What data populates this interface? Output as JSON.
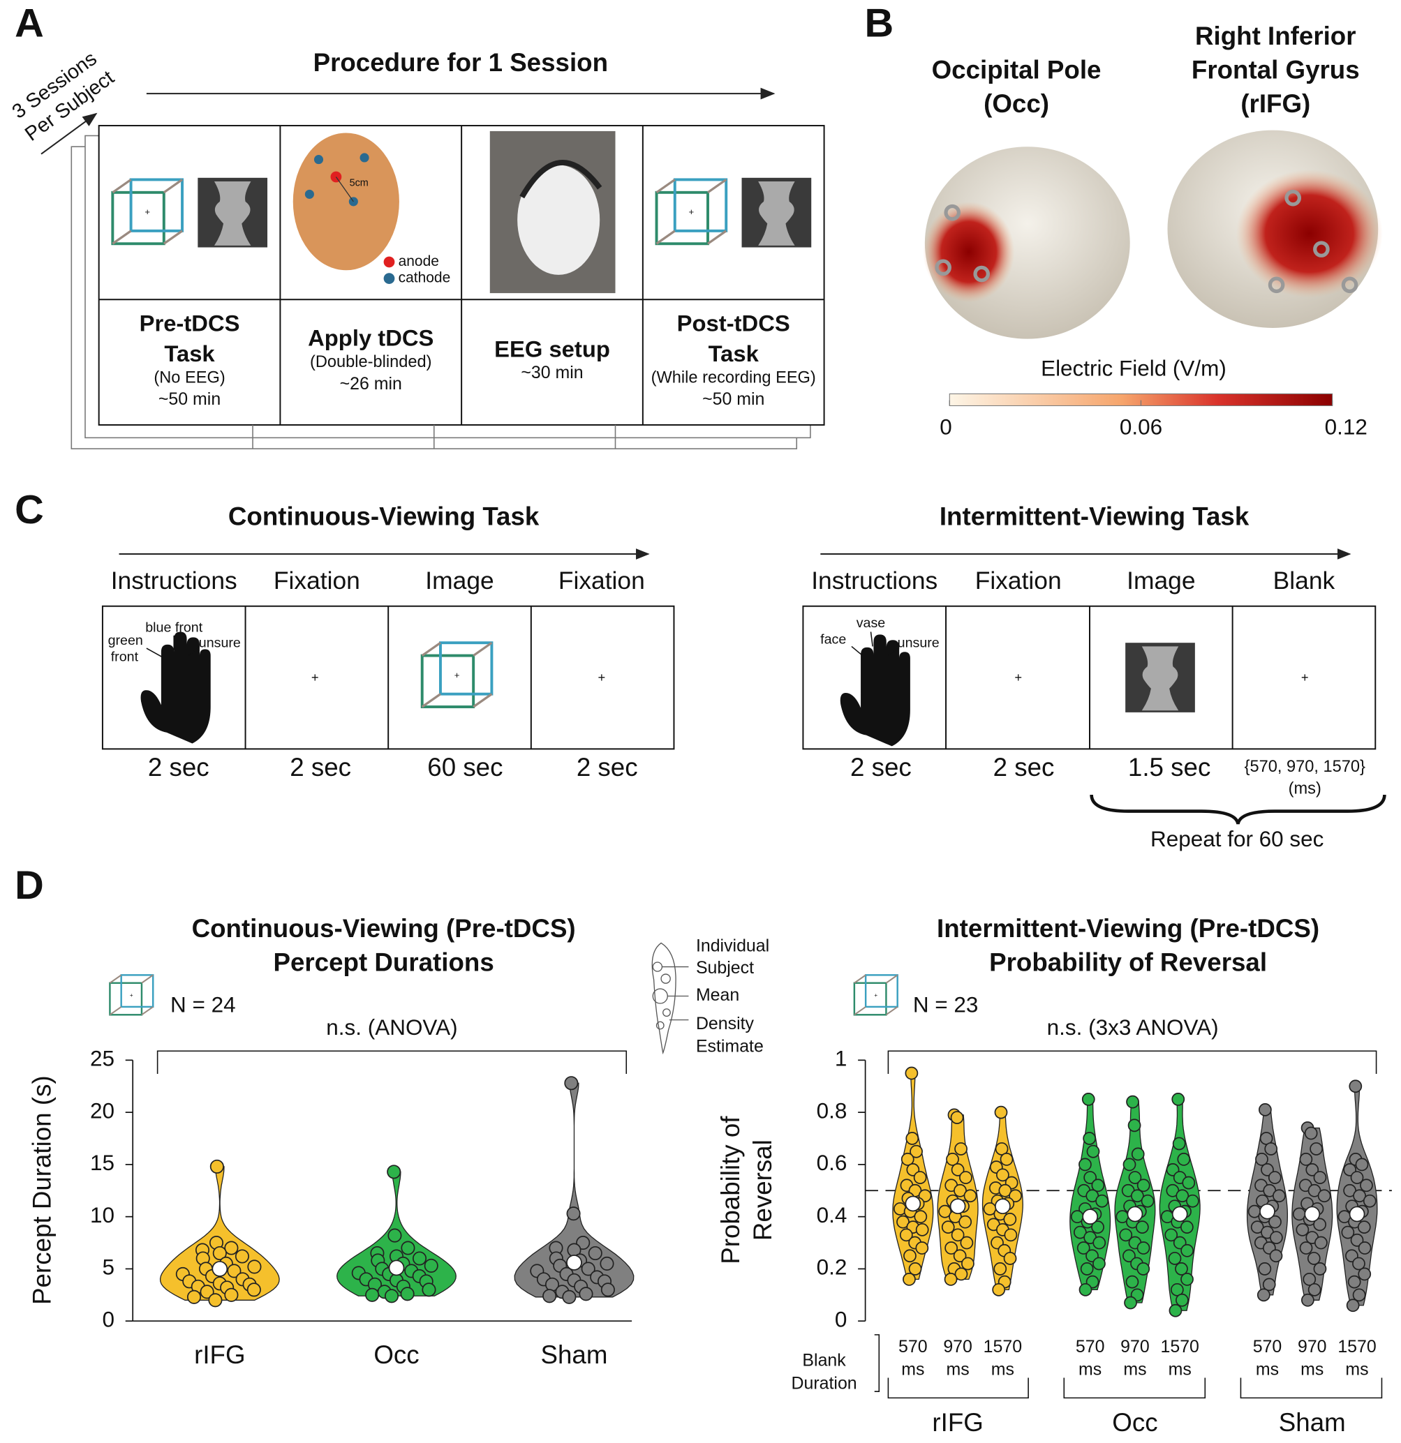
{
  "panel_labels": [
    "A",
    "B",
    "C",
    "D"
  ],
  "panel_a": {
    "title": "Procedure for 1 Session",
    "sessions": [
      "3 Sessions",
      "Per Subject"
    ],
    "steps": [
      {
        "name": [
          "Pre-tDCS",
          "Task"
        ],
        "note": "(No EEG)",
        "time": "~50 min"
      },
      {
        "name": [
          "Apply tDCS"
        ],
        "note": "(Double-blinded)",
        "time": "~26 min"
      },
      {
        "name": [
          "EEG setup"
        ],
        "time": "~30 min"
      },
      {
        "name": [
          "Post-tDCS",
          "Task"
        ],
        "note": "(While recording EEG)",
        "time": "~50 min"
      }
    ],
    "distance": "5cm",
    "electrodes": [
      "anode",
      "cathode"
    ]
  },
  "panel_b": {
    "regions": [
      [
        "Occipital Pole",
        "(Occ)"
      ],
      [
        "Right Inferior",
        "Frontal Gyrus",
        "(rIFG)"
      ]
    ],
    "colorbar": {
      "label": "Electric Field (V/m)",
      "lim": [
        0,
        0.12
      ],
      "ticks": [
        0,
        0.06,
        0.12
      ]
    }
  },
  "panel_c": {
    "tasks": [
      {
        "title": "Continuous-Viewing Task",
        "stages": [
          "Instructions",
          "Fixation",
          "Image",
          "Fixation"
        ],
        "durations": [
          "2 sec",
          "2 sec",
          "60 sec",
          "2 sec"
        ],
        "hand_labels": [
          "green",
          "front",
          "blue front",
          "unsure"
        ]
      },
      {
        "title": "Intermittent-Viewing Task",
        "stages": [
          "Instructions",
          "Fixation",
          "Image",
          "Blank"
        ],
        "durations": [
          "2 sec",
          "2 sec",
          "1.5 sec"
        ],
        "hand_labels": [
          "face",
          "vase",
          "unsure"
        ],
        "blank_duration": [
          "{570, 970, 1570}",
          "(ms)"
        ],
        "repeat": "Repeat for 60 sec"
      }
    ]
  },
  "legend": [
    [
      "Individual",
      "Subject"
    ],
    [
      "Mean"
    ],
    [
      "Density",
      "Estimate"
    ]
  ],
  "chart_data": [
    {
      "type": "violin",
      "title": [
        "Continuous-Viewing (Pre-tDCS)",
        "Percept Durations"
      ],
      "n": "N = 24",
      "annotation": "n.s. (ANOVA)",
      "ylabel": "Percept Duration (s)",
      "ylim": [
        0,
        25
      ],
      "yticks": [
        0,
        5,
        10,
        15,
        20,
        25
      ],
      "categories": [
        "rIFG",
        "Occ",
        "Sham"
      ],
      "colors": [
        "#f5c02c",
        "#2db34a",
        "#808080"
      ],
      "means": [
        5.0,
        5.1,
        5.6
      ],
      "points": [
        [
          14.8,
          7.5,
          7.0,
          6.8,
          6.5,
          6.2,
          6.0,
          5.5,
          5.2,
          5.0,
          4.8,
          4.5,
          4.3,
          4.0,
          3.8,
          3.6,
          3.5,
          3.3,
          3.2,
          3.0,
          2.8,
          2.5,
          2.3,
          2.0
        ],
        [
          14.3,
          8.2,
          7.0,
          6.5,
          6.2,
          6.0,
          5.8,
          5.5,
          5.3,
          5.0,
          4.8,
          4.6,
          4.5,
          4.3,
          4.0,
          3.9,
          3.8,
          3.5,
          3.3,
          3.0,
          2.8,
          2.6,
          2.5,
          2.4
        ],
        [
          22.8,
          10.3,
          7.5,
          7.0,
          6.8,
          6.5,
          6.0,
          5.8,
          5.5,
          5.3,
          5.0,
          4.8,
          4.5,
          4.2,
          4.0,
          3.9,
          3.8,
          3.5,
          3.3,
          3.0,
          2.8,
          2.6,
          2.4,
          2.3
        ]
      ]
    },
    {
      "type": "violin-grouped",
      "title": [
        "Intermittent-Viewing (Pre-tDCS)",
        "Probability of Reversal"
      ],
      "n": "N = 23",
      "annotation": "n.s. (3x3 ANOVA)",
      "ylabel": [
        "Probability of",
        "Reversal"
      ],
      "xlabel": [
        "Blank",
        "Duration"
      ],
      "ylim": [
        0,
        1
      ],
      "yticks": [
        0,
        0.2,
        0.4,
        0.6,
        0.8,
        1
      ],
      "reference_line": 0.5,
      "blank_durations": [
        "570",
        "970",
        "1570"
      ],
      "unit": "ms",
      "series": [
        {
          "name": "rIFG",
          "color": "#f5c02c",
          "means": [
            0.45,
            0.44,
            0.44
          ],
          "points": [
            [
              0.95,
              0.7,
              0.65,
              0.62,
              0.58,
              0.55,
              0.52,
              0.5,
              0.48,
              0.47,
              0.45,
              0.43,
              0.42,
              0.4,
              0.38,
              0.36,
              0.35,
              0.33,
              0.3,
              0.28,
              0.25,
              0.2,
              0.16
            ],
            [
              0.79,
              0.78,
              0.66,
              0.62,
              0.58,
              0.55,
              0.52,
              0.5,
              0.48,
              0.46,
              0.44,
              0.42,
              0.4,
              0.38,
              0.36,
              0.33,
              0.3,
              0.28,
              0.25,
              0.22,
              0.2,
              0.18,
              0.16
            ],
            [
              0.8,
              0.66,
              0.62,
              0.59,
              0.56,
              0.53,
              0.51,
              0.5,
              0.48,
              0.46,
              0.45,
              0.43,
              0.41,
              0.39,
              0.37,
              0.35,
              0.33,
              0.3,
              0.27,
              0.24,
              0.2,
              0.15,
              0.12
            ]
          ]
        },
        {
          "name": "Occ",
          "color": "#2db34a",
          "means": [
            0.4,
            0.41,
            0.41
          ],
          "points": [
            [
              0.85,
              0.7,
              0.65,
              0.6,
              0.55,
              0.52,
              0.5,
              0.48,
              0.46,
              0.43,
              0.41,
              0.4,
              0.38,
              0.36,
              0.34,
              0.32,
              0.3,
              0.28,
              0.25,
              0.22,
              0.2,
              0.15,
              0.12
            ],
            [
              0.84,
              0.75,
              0.64,
              0.6,
              0.55,
              0.52,
              0.5,
              0.48,
              0.46,
              0.44,
              0.42,
              0.4,
              0.38,
              0.36,
              0.33,
              0.3,
              0.28,
              0.25,
              0.22,
              0.2,
              0.15,
              0.1,
              0.07
            ],
            [
              0.85,
              0.68,
              0.62,
              0.58,
              0.55,
              0.53,
              0.5,
              0.48,
              0.46,
              0.44,
              0.42,
              0.4,
              0.38,
              0.36,
              0.33,
              0.3,
              0.27,
              0.24,
              0.2,
              0.16,
              0.12,
              0.08,
              0.04
            ]
          ]
        },
        {
          "name": "Sham",
          "color": "#808080",
          "means": [
            0.42,
            0.41,
            0.41
          ],
          "points": [
            [
              0.81,
              0.7,
              0.66,
              0.62,
              0.58,
              0.55,
              0.52,
              0.5,
              0.48,
              0.46,
              0.44,
              0.42,
              0.4,
              0.38,
              0.36,
              0.34,
              0.32,
              0.3,
              0.28,
              0.25,
              0.2,
              0.14,
              0.1
            ],
            [
              0.74,
              0.72,
              0.66,
              0.62,
              0.58,
              0.55,
              0.52,
              0.5,
              0.48,
              0.45,
              0.43,
              0.41,
              0.39,
              0.37,
              0.35,
              0.32,
              0.3,
              0.28,
              0.24,
              0.2,
              0.16,
              0.12,
              0.08
            ],
            [
              0.9,
              0.62,
              0.6,
              0.58,
              0.55,
              0.52,
              0.5,
              0.48,
              0.46,
              0.44,
              0.42,
              0.4,
              0.38,
              0.36,
              0.34,
              0.31,
              0.28,
              0.25,
              0.22,
              0.18,
              0.15,
              0.1,
              0.06
            ]
          ]
        }
      ]
    }
  ]
}
